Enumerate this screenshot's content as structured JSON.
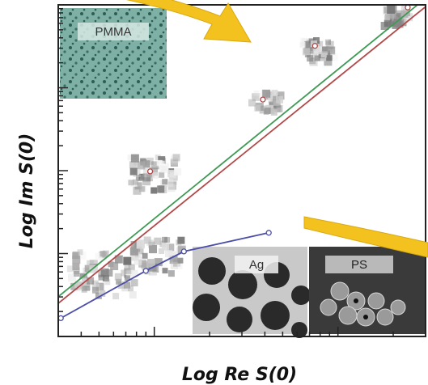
{
  "chart_data": {
    "type": "scatter",
    "title": "",
    "xlabel": "Log Re S(0)",
    "ylabel": "Log Im S(0)",
    "xscale": "log",
    "yscale": "log",
    "xlim": [
      0.3,
      30
    ],
    "ylim": [
      0.01,
      100
    ],
    "grid": false,
    "series": [
      {
        "name": "",
        "kind": "fit-line",
        "color": "#3f9a55",
        "x": [
          0.3,
          30
        ],
        "y": [
          0.0302,
          120.0
        ]
      },
      {
        "name": "",
        "kind": "fit-line",
        "color": "#b24a4a",
        "x": [
          0.3,
          30
        ],
        "y": [
          0.0251,
          95.0
        ]
      },
      {
        "name": "",
        "kind": "line-markers",
        "color": "#4b4ea8",
        "x": [
          0.31,
          0.9,
          1.45,
          4.2
        ],
        "y": [
          0.0166,
          0.062,
          0.106,
          0.178
        ]
      },
      {
        "name": "",
        "kind": "marker",
        "color": "#b24a4a",
        "x": [
          0.95,
          3.9,
          7.5,
          24.0
        ],
        "y": [
          0.98,
          7.2,
          32.0,
          93.0
        ]
      }
    ],
    "insets": [
      {
        "label": "PMMA",
        "position": "top-left"
      },
      {
        "label": "Ag",
        "position": "bottom-middle"
      },
      {
        "label": "PS",
        "position": "bottom-right"
      }
    ],
    "colors": {
      "arrow": "#f3c21f",
      "bg": "#ffffff",
      "frame": "#222222"
    }
  }
}
